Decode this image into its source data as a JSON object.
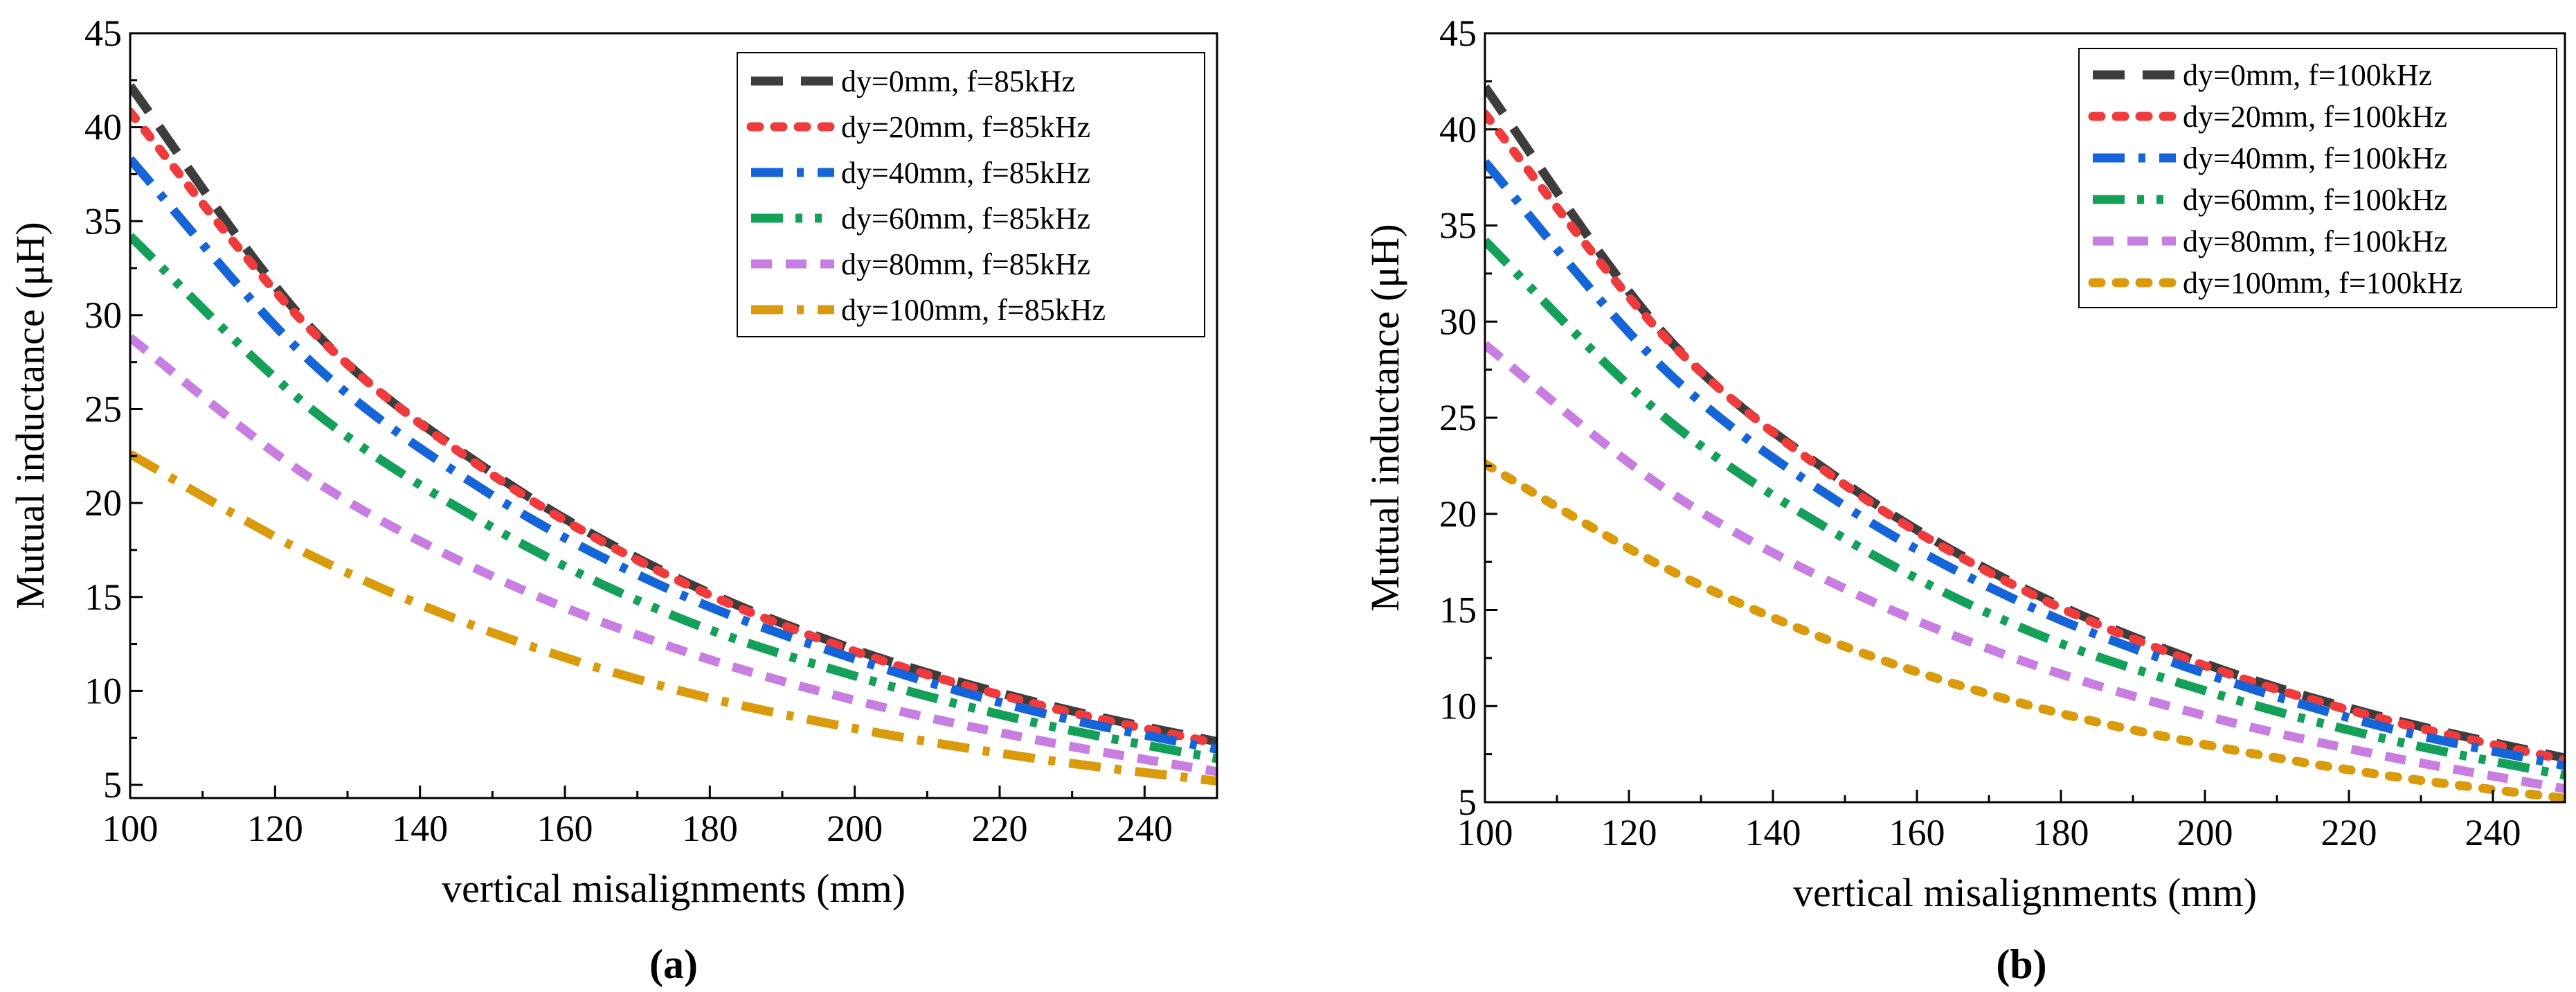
{
  "chart_data": [
    {
      "type": "line",
      "panel_label": "(a)",
      "xlabel": "vertical misalignments (mm)",
      "ylabel": "Mutual inductance (μH)",
      "xlim": [
        100,
        250
      ],
      "ylim": [
        4.3,
        45
      ],
      "xticks": [
        100,
        120,
        140,
        160,
        180,
        200,
        220,
        240
      ],
      "yticks": [
        5,
        10,
        15,
        20,
        25,
        30,
        35,
        40,
        45
      ],
      "legend_position": "top-right",
      "x": [
        100,
        125,
        150,
        175,
        200,
        225,
        250
      ],
      "series": [
        {
          "name": "dy=0mm, f=85kHz",
          "color": "#3d3d3d",
          "dash": "dash",
          "values": [
            42.2,
            29.3,
            21.6,
            16.1,
            12.2,
            9.4,
            7.3
          ]
        },
        {
          "name": "dy=20mm, f=85kHz",
          "color": "#ef3b3b",
          "dash": "dot",
          "values": [
            40.8,
            29.2,
            21.5,
            16.0,
            12.1,
            9.3,
            7.2
          ]
        },
        {
          "name": "dy=40mm, f=85kHz",
          "color": "#1565d8",
          "dash": "dashdot",
          "values": [
            38.3,
            27.5,
            20.4,
            15.3,
            11.7,
            8.9,
            6.9
          ]
        },
        {
          "name": "dy=60mm, f=85kHz",
          "color": "#15a05a",
          "dash": "dashdotdot",
          "values": [
            34.2,
            25.0,
            18.7,
            14.0,
            10.8,
            8.3,
            6.4
          ]
        },
        {
          "name": "dy=80mm, f=85kHz",
          "color": "#c77ee0",
          "dash": "shortdash",
          "values": [
            28.8,
            21.3,
            16.1,
            12.3,
            9.5,
            7.4,
            5.7
          ]
        },
        {
          "name": "dy=100mm, f=85kHz",
          "color": "#d99a0b",
          "dash": "dashdot",
          "values": [
            22.6,
            17.2,
            13.1,
            10.1,
            8.0,
            6.4,
            5.2
          ]
        }
      ]
    },
    {
      "type": "line",
      "panel_label": "(b)",
      "xlabel": "vertical misalignments (mm)",
      "ylabel": "Mutual inductance (μH)",
      "xlim": [
        100,
        250
      ],
      "ylim": [
        5,
        45
      ],
      "xticks": [
        100,
        120,
        140,
        160,
        180,
        200,
        220,
        240
      ],
      "yticks": [
        5,
        10,
        15,
        20,
        25,
        30,
        35,
        40,
        45
      ],
      "legend_position": "top-right",
      "x": [
        100,
        125,
        150,
        175,
        200,
        225,
        250
      ],
      "series": [
        {
          "name": "dy=0mm, f=100kHz",
          "color": "#3d3d3d",
          "dash": "dash",
          "values": [
            42.2,
            29.3,
            21.6,
            16.1,
            12.2,
            9.4,
            7.3
          ]
        },
        {
          "name": "dy=20mm, f=100kHz",
          "color": "#ef3b3b",
          "dash": "dot",
          "values": [
            40.8,
            29.2,
            21.5,
            16.0,
            12.1,
            9.3,
            7.2
          ]
        },
        {
          "name": "dy=40mm, f=100kHz",
          "color": "#1565d8",
          "dash": "dashdot",
          "values": [
            38.3,
            27.5,
            20.4,
            15.3,
            11.7,
            8.9,
            6.9
          ]
        },
        {
          "name": "dy=60mm, f=100kHz",
          "color": "#15a05a",
          "dash": "dashdotdot",
          "values": [
            34.2,
            25.0,
            18.7,
            14.0,
            10.8,
            8.3,
            6.4
          ]
        },
        {
          "name": "dy=80mm, f=100kHz",
          "color": "#c77ee0",
          "dash": "shortdash",
          "values": [
            28.8,
            21.3,
            16.1,
            12.3,
            9.5,
            7.4,
            5.7
          ]
        },
        {
          "name": "dy=100mm, f=100kHz",
          "color": "#d99a0b",
          "dash": "dot",
          "values": [
            22.6,
            17.2,
            13.1,
            10.1,
            8.0,
            6.4,
            5.2
          ]
        }
      ]
    }
  ]
}
